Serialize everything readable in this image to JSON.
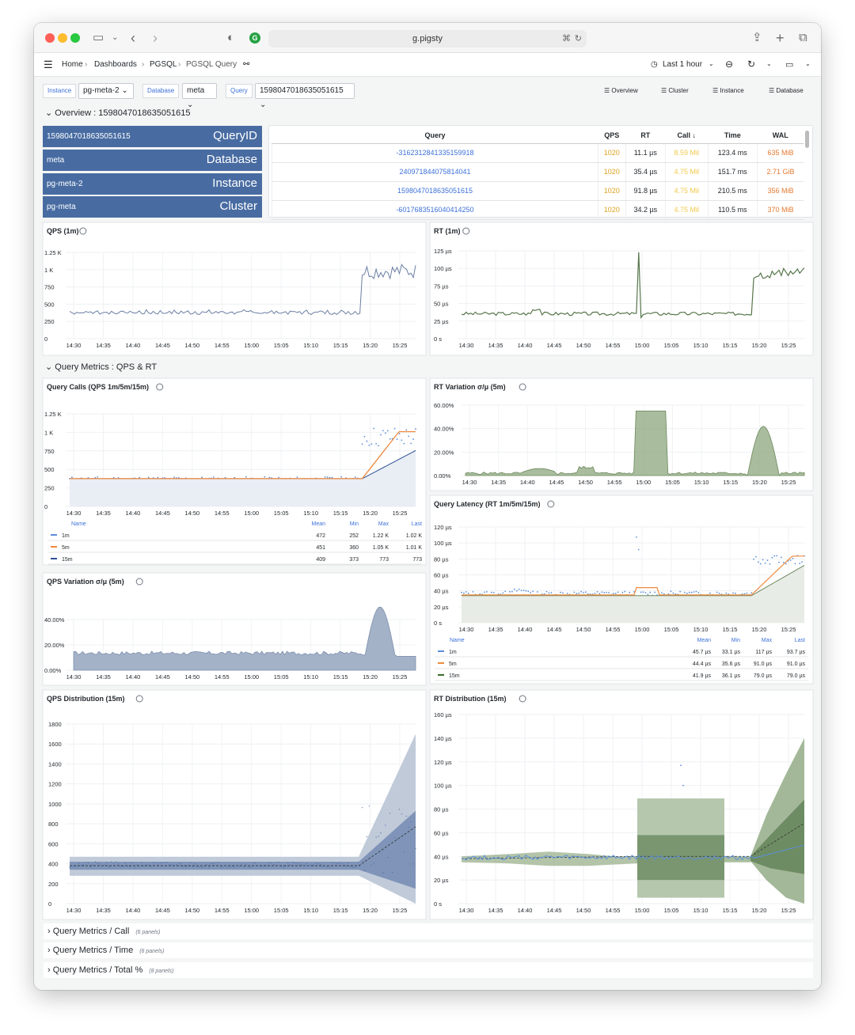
{
  "browser": {
    "url": "g.pigsty"
  },
  "nav": {
    "breadcrumb": [
      "Home",
      "Dashboards",
      "PGSQL",
      "PGSQL Query"
    ],
    "time_range": "Last 1 hour"
  },
  "variables": {
    "instance_label": "Instance",
    "instance_value": "pg-meta-2",
    "database_label": "Database",
    "database_value": "meta",
    "query_label": "Query",
    "query_value": "1598047018635051615",
    "links": [
      "Overview",
      "Cluster",
      "Instance",
      "Database"
    ]
  },
  "rows": {
    "overview": "Overview : 1598047018635051615",
    "metrics": "Query Metrics : QPS & RT",
    "collapsed": [
      {
        "title": "Query Metrics / Call",
        "count": "(6 panels)"
      },
      {
        "title": "Query Metrics / Time",
        "count": "(6 panels)"
      },
      {
        "title": "Query Metrics / Total %",
        "count": "(8 panels)"
      }
    ]
  },
  "stats": [
    {
      "value": "1598047018635051615",
      "label": "QueryID"
    },
    {
      "value": "meta",
      "label": "Database"
    },
    {
      "value": "pg-meta-2",
      "label": "Instance"
    },
    {
      "value": "pg-meta",
      "label": "Cluster"
    }
  ],
  "query_table": {
    "headers": [
      "Query",
      "QPS",
      "RT",
      "Call ↓",
      "Time",
      "WAL"
    ],
    "rows": [
      [
        "-3162312841335159918",
        "1020",
        "11.1 µs",
        "8.59 Mil",
        "123.4 ms",
        "635 MiB"
      ],
      [
        "240971844075814041",
        "1020",
        "35.4 µs",
        "4.75 Mil",
        "151.7 ms",
        "2.71 GiB"
      ],
      [
        "1598047018635051615",
        "1020",
        "91.8 µs",
        "4.75 Mil",
        "210.5 ms",
        "356 MiB"
      ],
      [
        "-6017683516040414250",
        "1020",
        "34.2 µs",
        "4.75 Mil",
        "110.5 ms",
        "370 MiB"
      ]
    ]
  },
  "colors": {
    "stat_bg": "#486ca2",
    "link": "#3d71d9",
    "qps_line": "#6b7fa3",
    "rt_line": "#56764a",
    "s1m": "#5b8fd9",
    "s5m": "#f0893d",
    "s15m": "#2c5096",
    "green_fill": "#93ab85",
    "blue_band": "#a4b2c8"
  },
  "x_ticks": [
    "14:30",
    "14:35",
    "14:40",
    "14:45",
    "14:50",
    "14:55",
    "15:00",
    "15:05",
    "15:10",
    "15:15",
    "15:20",
    "15:25"
  ],
  "panels": {
    "qps": {
      "title": "QPS (1m)",
      "y_ticks": [
        "1.25 K",
        "1 K",
        "750",
        "500",
        "250",
        "0"
      ]
    },
    "rt": {
      "title": "RT (1m)",
      "y_ticks": [
        "125 µs",
        "100 µs",
        "75 µs",
        "50 µs",
        "25 µs",
        "0 s"
      ]
    },
    "calls": {
      "title": "Query Calls (QPS 1m/5m/15m)",
      "y_ticks": [
        "1.25 K",
        "1 K",
        "750",
        "500",
        "250",
        "0"
      ],
      "legend_headers": [
        "Name",
        "Mean",
        "Min",
        "Max",
        "Last"
      ],
      "legend": [
        [
          "1m",
          "472",
          "252",
          "1.22 K",
          "1.02 K"
        ],
        [
          "5m",
          "451",
          "360",
          "1.05 K",
          "1.01 K"
        ],
        [
          "15m",
          "409",
          "373",
          "773",
          "773"
        ]
      ]
    },
    "rtvar": {
      "title": "RT Variation σ/μ (5m)",
      "y_ticks": [
        "60.00%",
        "40.00%",
        "20.00%",
        "0.00%"
      ]
    },
    "latency": {
      "title": "Query Latency (RT 1m/5m/15m)",
      "y_ticks": [
        "120 µs",
        "100 µs",
        "80 µs",
        "60 µs",
        "40 µs",
        "20 µs",
        "0 s"
      ],
      "legend_headers": [
        "Name",
        "Mean",
        "Min",
        "Max",
        "Last"
      ],
      "legend": [
        [
          "1m",
          "45.7 µs",
          "33.1 µs",
          "117 µs",
          "93.7 µs"
        ],
        [
          "5m",
          "44.4 µs",
          "35.6 µs",
          "91.0 µs",
          "91.0 µs"
        ],
        [
          "15m",
          "41.9 µs",
          "36.1 µs",
          "79.0 µs",
          "79.0 µs"
        ]
      ]
    },
    "qpsvar": {
      "title": "QPS Variation σ/μ (5m)",
      "y_ticks": [
        "40.00%",
        "20.00%",
        "0.00%"
      ]
    },
    "qpsdist": {
      "title": "QPS Distribution (15m)",
      "y_ticks": [
        "1800",
        "1600",
        "1400",
        "1200",
        "1000",
        "800",
        "600",
        "400",
        "200",
        "0"
      ]
    },
    "rtdist": {
      "title": "RT Distribution (15m)",
      "y_ticks": [
        "160 µs",
        "140 µs",
        "120 µs",
        "100 µs",
        "80 µs",
        "60 µs",
        "40 µs",
        "20 µs",
        "0 s"
      ]
    }
  }
}
